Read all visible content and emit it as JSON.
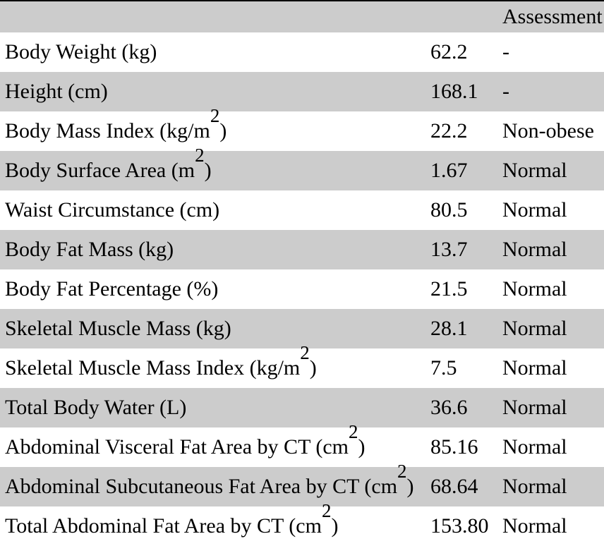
{
  "table": {
    "columns": {
      "metric_header": "",
      "value_header": "",
      "assessment_header": "Assessment"
    },
    "rows": [
      {
        "metric": "Body Weight (kg)",
        "value": "62.2",
        "assessment": "-"
      },
      {
        "metric": "Height (cm)",
        "value": "168.1",
        "assessment": "-"
      },
      {
        "metric": "Body Mass Index (kg/m²)",
        "value": "22.2",
        "assessment": "Non-obese"
      },
      {
        "metric": "Body Surface Area (m²)",
        "value": "1.67",
        "assessment": "Normal"
      },
      {
        "metric": "Waist Circumstance (cm)",
        "value": "80.5",
        "assessment": "Normal"
      },
      {
        "metric": "Body Fat Mass (kg)",
        "value": "13.7",
        "assessment": "Normal"
      },
      {
        "metric": "Body Fat Percentage (%)",
        "value": "21.5",
        "assessment": "Normal"
      },
      {
        "metric": "Skeletal Muscle Mass (kg)",
        "value": "28.1",
        "assessment": "Normal"
      },
      {
        "metric": "Skeletal Muscle Mass Index (kg/m²)",
        "value": "7.5",
        "assessment": "Normal"
      },
      {
        "metric": "Total Body Water (L)",
        "value": "36.6",
        "assessment": "Normal"
      },
      {
        "metric": "Abdominal Visceral Fat Area by CT (cm²)",
        "value": "85.16",
        "assessment": "Normal"
      },
      {
        "metric": "Abdominal Subcutaneous Fat Area by CT (cm²)",
        "value": "68.64",
        "assessment": "Normal"
      },
      {
        "metric": "Total Abdominal Fat Area by CT (cm²)",
        "value": "153.80",
        "assessment": "Normal"
      }
    ],
    "colors": {
      "row_alt_background": "#cccccc",
      "row_background": "#ffffff",
      "text": "#000000",
      "top_rule": "#000000"
    }
  }
}
